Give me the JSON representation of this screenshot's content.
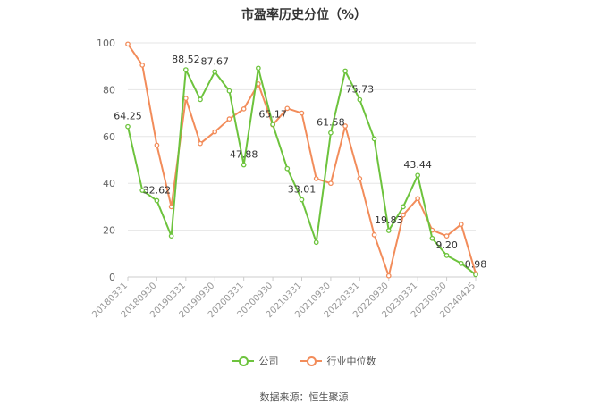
{
  "chart_data": {
    "type": "line",
    "title": "市盈率历史分位（%）",
    "ylim": [
      0,
      100
    ],
    "y_ticks": [
      0,
      20,
      40,
      60,
      80,
      100
    ],
    "grid": true,
    "legend_placement": "bottom-center",
    "x_tick_labels": [
      "20180331",
      "20180930",
      "20190331",
      "20190930",
      "20200331",
      "20200930",
      "20210331",
      "20210930",
      "20220331",
      "20220930",
      "20230331",
      "20230930",
      "20240425"
    ],
    "x": [
      "20180331",
      "20180630",
      "20180930",
      "20181231",
      "20190331",
      "20190630",
      "20190930",
      "20191231",
      "20200331",
      "20200630",
      "20200930",
      "20201231",
      "20210331",
      "20210630",
      "20210930",
      "20211231",
      "20220331",
      "20220630",
      "20220930",
      "20221231",
      "20230331",
      "20230630",
      "20230930",
      "20231231",
      "20240425"
    ],
    "series": [
      {
        "name": "公司",
        "color": "#6dc33d",
        "values": [
          64.25,
          37.0,
          32.62,
          17.5,
          88.52,
          75.8,
          87.67,
          79.5,
          47.88,
          89.2,
          65.17,
          46.3,
          33.01,
          14.8,
          61.58,
          88.0,
          75.73,
          59.0,
          19.83,
          30.0,
          43.44,
          16.5,
          9.2,
          5.8,
          0.98
        ]
      },
      {
        "name": "行业中位数",
        "color": "#f28c5a",
        "values": [
          99.5,
          90.5,
          56.3,
          30.0,
          76.3,
          57.0,
          62.0,
          67.5,
          71.8,
          82.5,
          65.0,
          72.0,
          70.0,
          42.0,
          40.0,
          64.5,
          42.0,
          18.0,
          0.5,
          26.5,
          33.5,
          20.0,
          17.5,
          22.5,
          1.5
        ]
      }
    ],
    "data_labels": [
      {
        "series": 0,
        "index": 0,
        "text": "64.25"
      },
      {
        "series": 0,
        "index": 2,
        "text": "32.62"
      },
      {
        "series": 0,
        "index": 4,
        "text": "88.52"
      },
      {
        "series": 0,
        "index": 6,
        "text": "87.67"
      },
      {
        "series": 0,
        "index": 8,
        "text": "47.88"
      },
      {
        "series": 0,
        "index": 10,
        "text": "65.17"
      },
      {
        "series": 0,
        "index": 12,
        "text": "33.01"
      },
      {
        "series": 0,
        "index": 14,
        "text": "61.58"
      },
      {
        "series": 0,
        "index": 16,
        "text": "75.73"
      },
      {
        "series": 0,
        "index": 18,
        "text": "19.83"
      },
      {
        "series": 0,
        "index": 20,
        "text": "43.44"
      },
      {
        "series": 0,
        "index": 22,
        "text": "9.20"
      },
      {
        "series": 0,
        "index": 24,
        "text": "0.98"
      }
    ],
    "source": "数据来源：恒生聚源"
  }
}
